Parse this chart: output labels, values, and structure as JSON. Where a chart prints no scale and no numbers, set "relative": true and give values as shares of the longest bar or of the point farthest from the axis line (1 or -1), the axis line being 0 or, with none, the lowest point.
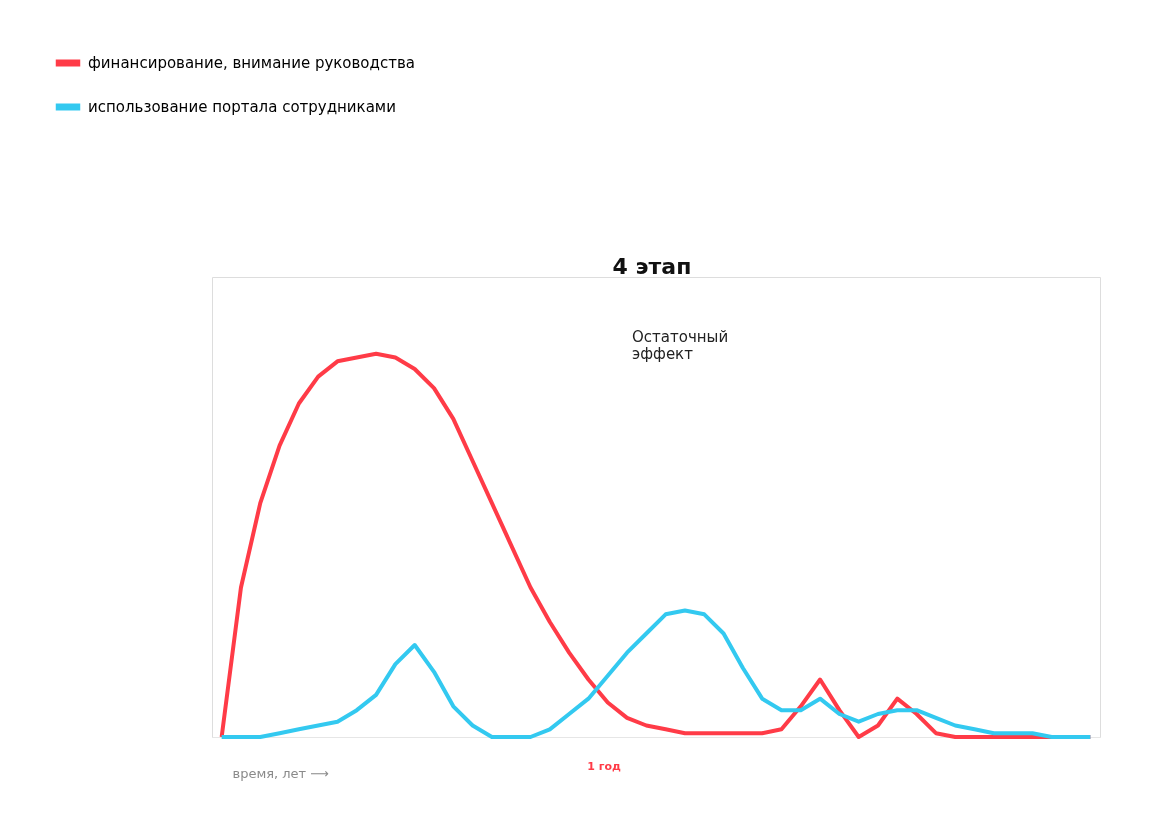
{
  "chart_data": {
    "type": "line",
    "relative": true,
    "xlabel": "время, лет ⟶",
    "legend": "top left",
    "tick_labels": false,
    "categories": [
      null,
      null,
      null,
      null,
      null,
      null,
      null,
      null,
      null,
      null,
      null,
      null,
      null,
      null,
      null,
      null,
      null,
      null,
      null,
      null,
      null,
      null,
      null,
      null,
      null,
      null,
      null,
      null,
      null,
      null,
      null,
      null,
      null,
      null,
      null,
      null,
      null,
      null,
      null,
      null,
      null,
      null,
      null,
      null,
      null,
      null
    ],
    "series": [
      {
        "name": "финансирование, внимание руководства",
        "color": "#ff3b47",
        "values": [
          0,
          0.39,
          0.61,
          0.76,
          0.87,
          0.94,
          0.98,
          0.99,
          1.0,
          0.99,
          0.96,
          0.91,
          0.83,
          0.72,
          0.61,
          0.5,
          0.39,
          0.3,
          0.22,
          0.15,
          0.09,
          0.05,
          0.03,
          0.02,
          0.01,
          0.01,
          0.01,
          0.01,
          0.01,
          0.02,
          0.08,
          0.15,
          0.07,
          0,
          0.03,
          0.1,
          0.06,
          0.01,
          0,
          0,
          0,
          0,
          0,
          0,
          0,
          0
        ]
      },
      {
        "name": "использование портала сотрудниками",
        "color": "#33c9f0",
        "values": [
          0,
          0,
          0,
          0.01,
          0.02,
          0.03,
          0.04,
          0.07,
          0.11,
          0.19,
          0.24,
          0.17,
          0.08,
          0.03,
          0,
          0,
          0,
          0.02,
          0.06,
          0.1,
          0.16,
          0.22,
          0.27,
          0.32,
          0.33,
          0.32,
          0.27,
          0.18,
          0.1,
          0.07,
          0.07,
          0.1,
          0.06,
          0.04,
          0.06,
          0.07,
          0.07,
          0.05,
          0.03,
          0.02,
          0.01,
          0.01,
          0.01,
          0,
          0,
          0
        ]
      }
    ],
    "annotations": [
      "4 этап",
      "Остаточный эффект",
      "1 год"
    ]
  }
}
